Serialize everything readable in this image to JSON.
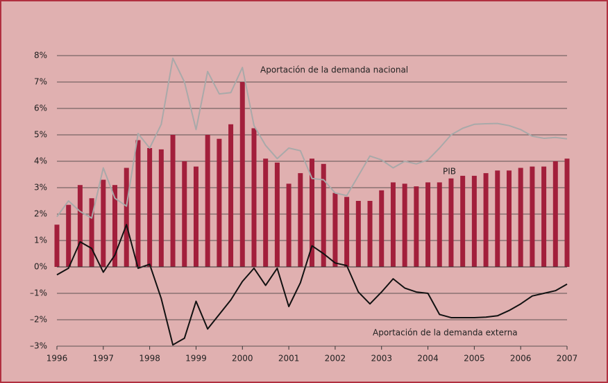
{
  "chart_data": {
    "type": "bar-line",
    "annotations": [
      "Aportación de la demanda nacional",
      "PIB",
      "Aportación de la demanda externa"
    ],
    "x": [
      1996,
      1996.25,
      1996.5,
      1996.75,
      1997,
      1997.25,
      1997.5,
      1997.75,
      1998,
      1998.25,
      1998.5,
      1998.75,
      1999,
      1999.25,
      1999.5,
      1999.75,
      2000,
      2000.25,
      2000.5,
      2000.75,
      2001,
      2001.25,
      2001.5,
      2001.75,
      2002,
      2002.25,
      2002.5,
      2002.75,
      2003,
      2003.25,
      2003.5,
      2003.75,
      2004,
      2004.25,
      2004.5,
      2004.75,
      2005,
      2005.25,
      2005.5,
      2005.75,
      2006,
      2006.25,
      2006.5,
      2006.75,
      2007
    ],
    "series": [
      {
        "name": "PIB",
        "kind": "bar",
        "color": "#a21f3b",
        "values": [
          1.6,
          2.35,
          3.1,
          2.6,
          3.3,
          3.1,
          3.75,
          4.8,
          4.5,
          4.45,
          5.0,
          4.0,
          3.8,
          5.0,
          4.85,
          5.4,
          7.0,
          5.25,
          4.1,
          3.95,
          3.15,
          3.55,
          4.1,
          3.9,
          2.8,
          2.65,
          2.5,
          2.5,
          2.9,
          3.2,
          3.15,
          3.05,
          3.2,
          3.2,
          3.35,
          3.45,
          3.45,
          3.55,
          3.65,
          3.65,
          3.75,
          3.8,
          3.8,
          4.0,
          4.1
        ]
      },
      {
        "name": "Aportación de la demanda nacional",
        "kind": "line",
        "color": "#a9a9a9",
        "values": [
          1.9,
          2.5,
          2.1,
          1.85,
          3.75,
          2.6,
          2.3,
          5.05,
          4.5,
          5.4,
          7.9,
          7.0,
          5.2,
          7.4,
          6.55,
          6.6,
          7.55,
          5.35,
          4.6,
          4.1,
          4.5,
          4.4,
          3.35,
          3.3,
          2.8,
          2.7,
          3.45,
          4.2,
          4.05,
          3.75,
          4.0,
          3.9,
          4.05,
          4.5,
          5.0,
          5.25,
          5.4,
          5.42,
          5.43,
          5.35,
          5.2,
          4.95,
          4.87,
          4.9,
          4.85
        ]
      },
      {
        "name": "Aportación de la demanda externa",
        "kind": "line",
        "color": "#111111",
        "values": [
          -0.3,
          -0.05,
          0.95,
          0.7,
          -0.2,
          0.45,
          1.6,
          -0.05,
          0.1,
          -1.2,
          -2.95,
          -2.7,
          -1.3,
          -2.35,
          -1.8,
          -1.25,
          -0.55,
          -0.05,
          -0.7,
          -0.05,
          -1.5,
          -0.6,
          0.8,
          0.5,
          0.15,
          0.05,
          -0.95,
          -1.4,
          -0.95,
          -0.45,
          -0.8,
          -0.95,
          -1.0,
          -1.8,
          -1.92,
          -1.92,
          -1.92,
          -1.9,
          -1.85,
          -1.65,
          -1.4,
          -1.1,
          -1.0,
          -0.9,
          -0.65
        ]
      }
    ],
    "xlim": [
      1996,
      2007
    ],
    "xticks": [
      1996,
      1997,
      1998,
      1999,
      2000,
      2001,
      2002,
      2003,
      2004,
      2005,
      2006,
      2007
    ],
    "ylim": [
      -3,
      8
    ],
    "yticks": [
      {
        "value": -3,
        "label": "–3%"
      },
      {
        "value": -2,
        "label": "–2%"
      },
      {
        "value": -1,
        "label": "–1%"
      },
      {
        "value": 0,
        "label": "0%"
      },
      {
        "value": 1,
        "label": "1%"
      },
      {
        "value": 2,
        "label": "2%"
      },
      {
        "value": 3,
        "label": "3%"
      },
      {
        "value": 4,
        "label": "4%"
      },
      {
        "value": 5,
        "label": "5%"
      },
      {
        "value": 6,
        "label": "6%"
      },
      {
        "value": 7,
        "label": "7%"
      },
      {
        "value": 8,
        "label": "8%"
      }
    ],
    "grid": true
  }
}
